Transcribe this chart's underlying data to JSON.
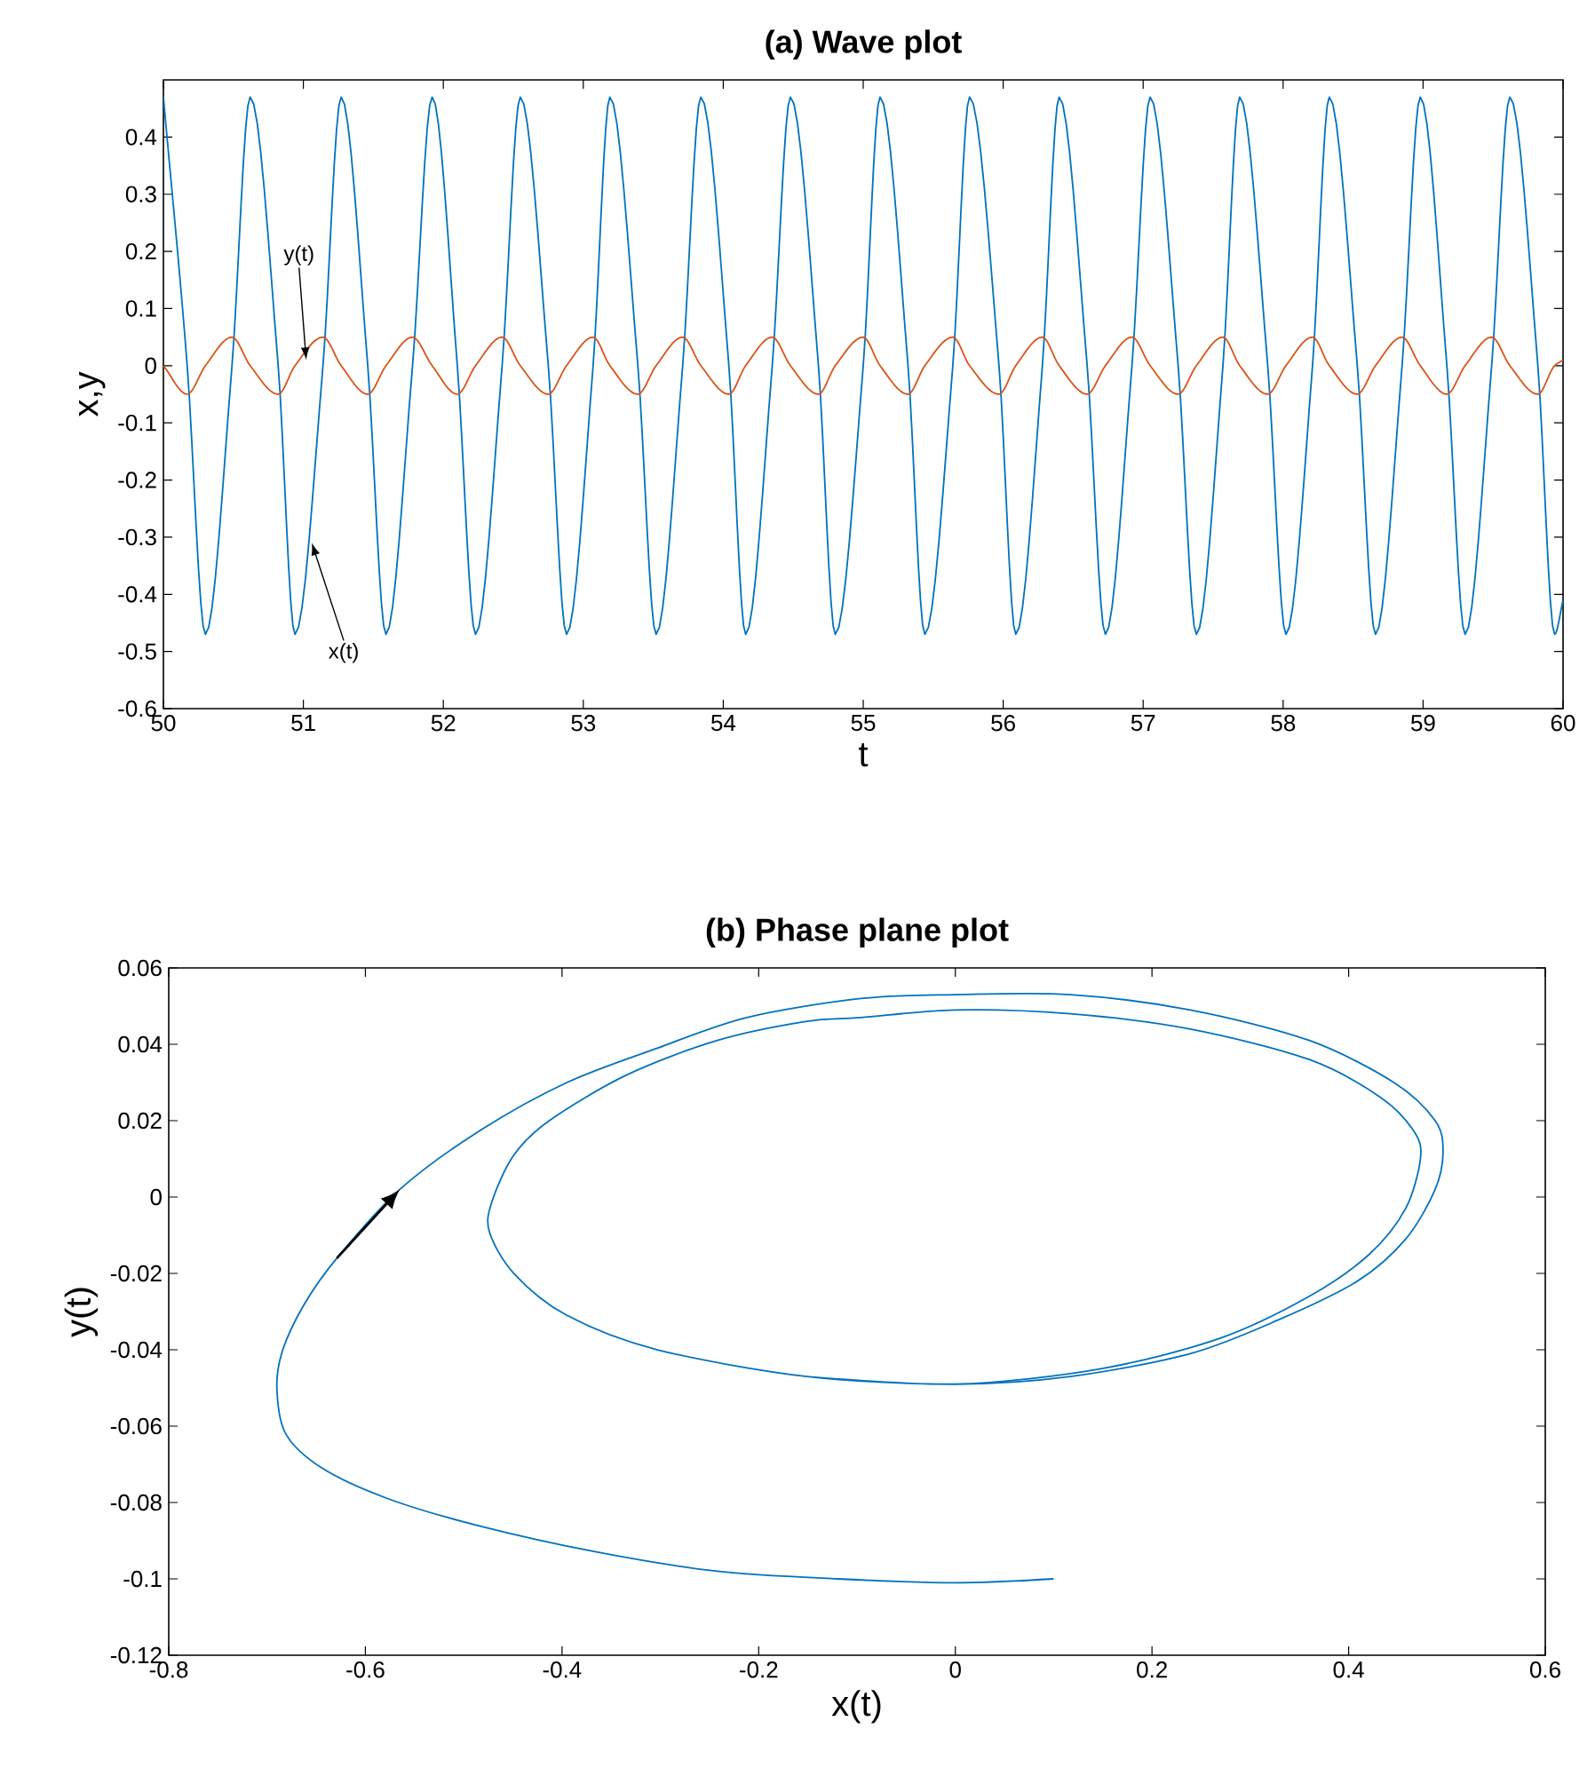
{
  "chart_data": [
    {
      "type": "line",
      "title": "(a) Wave plot",
      "xlabel": "t",
      "ylabel": "x,y",
      "xlim": [
        50,
        60
      ],
      "xticks": [
        50,
        51,
        52,
        53,
        54,
        55,
        56,
        57,
        58,
        59,
        60
      ],
      "ylim": [
        -0.6,
        0.5
      ],
      "yticks": [
        -0.6,
        -0.5,
        -0.4,
        -0.3,
        -0.2,
        -0.1,
        0,
        0.1,
        0.2,
        0.3,
        0.4
      ],
      "series": [
        {
          "color": "#0072bd",
          "x": [
            50,
            50.17,
            50.3,
            50.49,
            50.62,
            50.82,
            50.94,
            51.14,
            51.27,
            51.46,
            51.59,
            51.78,
            51.92,
            52.1,
            52.23,
            52.42,
            52.55,
            52.75,
            52.88,
            53.07,
            53.19,
            53.39,
            53.52,
            53.71,
            53.84,
            54.04,
            54.16,
            54.35,
            54.48,
            54.68,
            54.8,
            55.0,
            55.12,
            55.32,
            55.44,
            55.64,
            55.76,
            55.97,
            56.09,
            56.28,
            56.4,
            56.6,
            56.73,
            56.92,
            57.05,
            57.25,
            57.38,
            57.57,
            57.69,
            57.89,
            58.02,
            58.21,
            58.33,
            58.53,
            58.66,
            58.85,
            58.98,
            59.17,
            59.3,
            59.49,
            59.62,
            59.82,
            59.94,
            60
          ],
          "values": [
            0.47,
            0,
            -0.47,
            0,
            0.47,
            0,
            -0.47,
            0,
            0.47,
            0,
            -0.47,
            0,
            0.47,
            0,
            -0.47,
            0,
            0.47,
            0,
            -0.47,
            0,
            0.47,
            0,
            -0.47,
            0,
            0.47,
            0,
            -0.47,
            0,
            0.47,
            0,
            -0.47,
            0,
            0.47,
            0,
            -0.47,
            0,
            0.47,
            0,
            -0.47,
            0,
            0.47,
            0,
            -0.47,
            0,
            0.47,
            0,
            -0.47,
            0,
            0.47,
            0,
            -0.47,
            0,
            0.47,
            0,
            -0.47,
            0,
            0.47,
            0,
            -0.47,
            0,
            0.47,
            0,
            -0.47,
            -0.41
          ]
        },
        {
          "color": "#d95319",
          "x": [
            50,
            50.17,
            50.3,
            50.49,
            50.62,
            50.82,
            50.94,
            51.14,
            51.27,
            51.46,
            51.59,
            51.78,
            51.92,
            52.1,
            52.23,
            52.42,
            52.55,
            52.75,
            52.88,
            53.07,
            53.19,
            53.39,
            53.52,
            53.71,
            53.84,
            54.04,
            54.16,
            54.35,
            54.48,
            54.68,
            54.8,
            55.0,
            55.12,
            55.32,
            55.44,
            55.64,
            55.76,
            55.97,
            56.09,
            56.28,
            56.4,
            56.6,
            56.73,
            56.92,
            57.05,
            57.25,
            57.38,
            57.57,
            57.69,
            57.89,
            58.02,
            58.21,
            58.33,
            58.53,
            58.66,
            58.85,
            58.98,
            59.17,
            59.3,
            59.49,
            59.62,
            59.82,
            59.94,
            60
          ],
          "values": [
            0,
            -0.05,
            0,
            0.05,
            0,
            -0.05,
            0,
            0.05,
            0,
            -0.05,
            0,
            0.05,
            0,
            -0.05,
            0,
            0.05,
            0,
            -0.05,
            0,
            0.05,
            0,
            -0.05,
            0,
            0.05,
            0,
            -0.05,
            0,
            0.05,
            0,
            -0.05,
            0,
            0.05,
            0,
            -0.05,
            0,
            0.05,
            0,
            -0.05,
            0,
            0.05,
            0,
            -0.05,
            0,
            0.05,
            0,
            -0.05,
            0,
            0.05,
            0,
            -0.05,
            0,
            0.05,
            0,
            -0.05,
            0,
            0.05,
            0,
            -0.05,
            0,
            0.05,
            0,
            -0.05,
            0,
            0.01
          ]
        }
      ],
      "annotations": [
        {
          "text": "y(t)",
          "x": 51.02,
          "y": 0.01
        },
        {
          "text": "x(t)",
          "x": 51.06,
          "y": -0.31
        }
      ]
    },
    {
      "type": "line",
      "title": "(b) Phase plane plot",
      "xlabel": "x(t)",
      "ylabel": "y(t)",
      "xlim": [
        -0.8,
        0.6
      ],
      "xticks": [
        -0.8,
        -0.6,
        -0.4,
        -0.2,
        0,
        0.2,
        0.4,
        0.6
      ],
      "ylim": [
        -0.12,
        0.06
      ],
      "yticks": [
        -0.12,
        -0.1,
        -0.08,
        -0.06,
        -0.04,
        -0.02,
        0,
        0.02,
        0.04,
        0.06
      ],
      "series": [
        {
          "color": "#0072bd",
          "x": [
            0.1,
            0,
            -0.12,
            -0.242,
            -0.364,
            -0.486,
            -0.577,
            -0.644,
            -0.681,
            -0.69,
            -0.684,
            -0.662,
            -0.629,
            -0.565,
            -0.486,
            -0.395,
            -0.303,
            -0.212,
            -0.096,
            0,
            0.117,
            0.239,
            0.36,
            0.446,
            0.488,
            0.496,
            0.488,
            0.458,
            0.409,
            0.33,
            0.239,
            0.117,
            0,
            -0.151,
            -0.303,
            -0.395,
            -0.449,
            -0.474,
            -0.471,
            -0.449,
            -0.413,
            -0.334,
            -0.242,
            -0.151,
            -0.096,
            0,
            0.117,
            0.239,
            0.36,
            0.433,
            0.467,
            0.473,
            0.458,
            0.421,
            0.36,
            0.269,
            0.147,
            0,
            -0.151
          ],
          "values": [
            -0.1,
            -0.101,
            -0.1,
            -0.098,
            -0.093,
            -0.086,
            -0.079,
            -0.071,
            -0.062,
            -0.05,
            -0.04,
            -0.028,
            -0.016,
            0.002,
            0.017,
            0.03,
            0.039,
            0.047,
            0.052,
            0.053,
            0.053,
            0.049,
            0.041,
            0.03,
            0.02,
            0.012,
            0.002,
            -0.011,
            -0.022,
            -0.032,
            -0.041,
            -0.047,
            -0.049,
            -0.047,
            -0.04,
            -0.031,
            -0.02,
            -0.009,
            -0.001,
            0.011,
            0.02,
            0.032,
            0.041,
            0.046,
            0.047,
            0.049,
            0.048,
            0.044,
            0.036,
            0.026,
            0.017,
            0.01,
            -0.003,
            -0.015,
            -0.026,
            -0.037,
            -0.045,
            -0.049,
            -0.047
          ]
        }
      ]
    }
  ]
}
